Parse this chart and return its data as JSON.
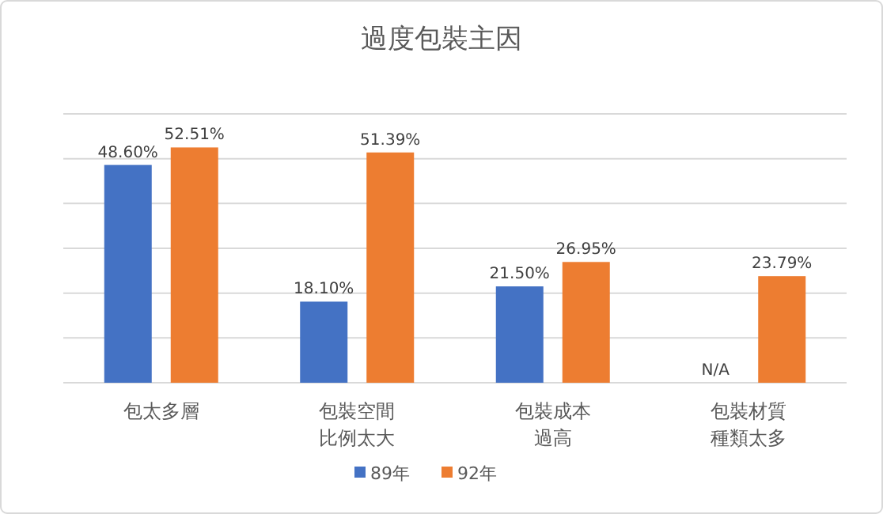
{
  "chart_data": {
    "type": "bar",
    "title": "過度包裝主因",
    "categories": [
      "包太多層",
      "包裝空間比例太大",
      "包裝成本過高",
      "包裝材質種類太多"
    ],
    "series": [
      {
        "name": "89年",
        "color": "#4472c4",
        "values": [
          48.6,
          18.1,
          21.5,
          null
        ],
        "value_labels": [
          "48.60%",
          "18.10%",
          "21.50%",
          "N/A"
        ]
      },
      {
        "name": "92年",
        "color": "#ed7d31",
        "values": [
          52.51,
          51.39,
          26.95,
          23.79
        ],
        "value_labels": [
          "52.51%",
          "51.39%",
          "26.95%",
          "23.79%"
        ]
      }
    ],
    "ylim": [
      0,
      60
    ],
    "yticks": [
      {
        "value": 0,
        "label": null
      },
      {
        "value": 10,
        "label": null
      },
      {
        "value": 20,
        "label": null
      },
      {
        "value": 30,
        "label": null
      },
      {
        "value": 40,
        "label": null
      },
      {
        "value": 50,
        "label": null
      },
      {
        "value": 60,
        "label": null
      }
    ],
    "tick_labels": "x",
    "grid": "y",
    "legend": "bottom"
  }
}
